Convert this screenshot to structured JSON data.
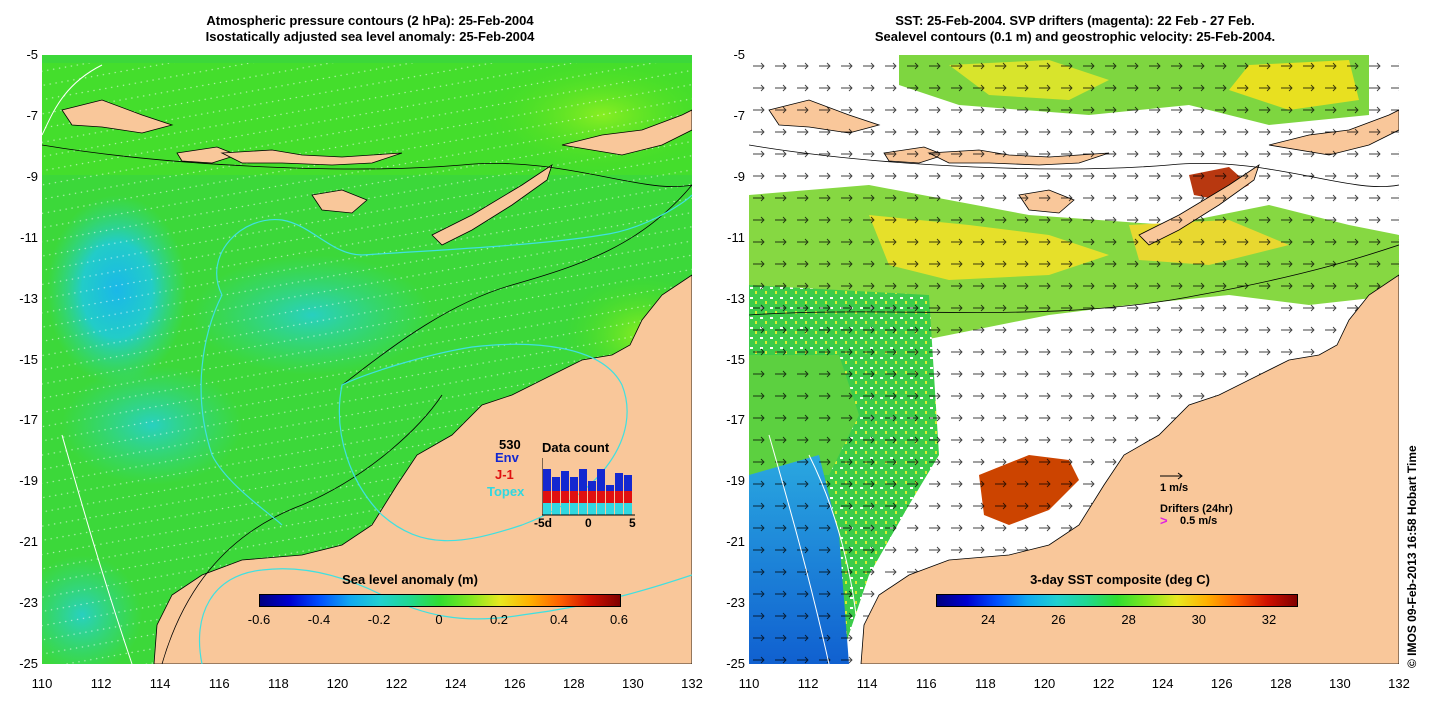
{
  "left_panel": {
    "title_line1": "Atmospheric pressure contours (2 hPa): 25-Feb-2004",
    "title_line2": "Isostatically adjusted sea level anomaly: 25-Feb-2004",
    "colorbar_title": "Sea level anomaly (m)",
    "colorbar_ticks": [
      "-0.6",
      "-0.4",
      "-0.2",
      "0",
      "0.2",
      "0.4",
      "0.6"
    ],
    "inset": {
      "title": "Data count",
      "legend": [
        {
          "label": "530",
          "color": "#000000"
        },
        {
          "label": "Env",
          "color": "#1428d0"
        },
        {
          "label": "J-1",
          "color": "#e01010"
        },
        {
          "label": "Topex",
          "color": "#30d8e0"
        }
      ],
      "xticks": [
        "-5d",
        "0",
        "5"
      ]
    }
  },
  "right_panel": {
    "title_line1": "SST: 25-Feb-2004. SVP drifters (magenta): 22 Feb - 27 Feb.",
    "title_line2": "Sealevel contours (0.1 m) and geostrophic velocity: 25-Feb-2004.",
    "colorbar_title": "3-day SST composite (deg C)",
    "colorbar_ticks": [
      "24",
      "26",
      "28",
      "30",
      "32"
    ],
    "vector_scale_label": "1 m/s",
    "drifters_label": "Drifters (24hr)",
    "drifter_scale_label": "0.5 m/s"
  },
  "axes": {
    "y_ticks": [
      "-5",
      "-7",
      "-9",
      "-11",
      "-13",
      "-15",
      "-17",
      "-19",
      "-21",
      "-23",
      "-25"
    ],
    "x_ticks": [
      "110",
      "112",
      "114",
      "116",
      "118",
      "120",
      "122",
      "124",
      "126",
      "128",
      "130",
      "132"
    ]
  },
  "credit": "© IMOS 09-Feb-2013 16:58 Hobart Time",
  "colors": {
    "land": "#f9c79a",
    "ocean_green": "#33dd33",
    "ocean_cyan": "#22cccc",
    "contour_cyan": "#40e0e0",
    "sst_warm": "#cc4400"
  }
}
